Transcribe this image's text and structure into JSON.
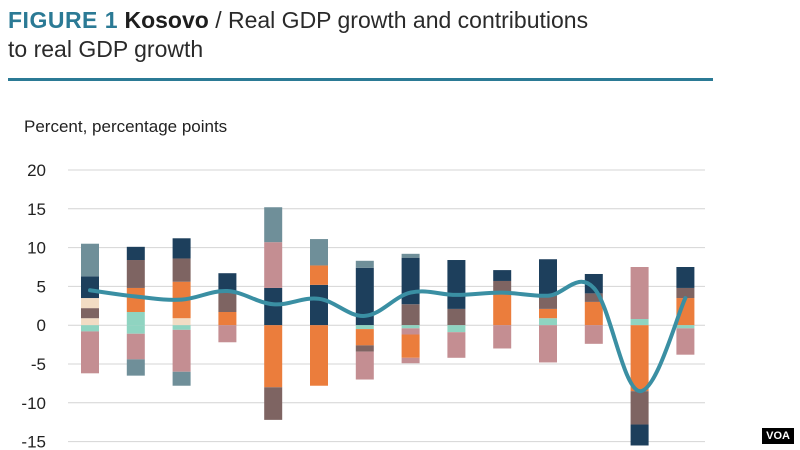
{
  "header": {
    "figure_label": "FIGURE 1",
    "country": "Kosovo",
    "title_rest": " / Real GDP growth and contributions",
    "title_line2": "to real GDP growth"
  },
  "units_label": "Percent, percentage points",
  "watermark": "VOA",
  "colors": {
    "accent": "#2b7a95",
    "line": "#3a8fa3",
    "grid": "#d4d4d4",
    "series": [
      "#1d3f5c",
      "#6f8f99",
      "#eb7d3c",
      "#c48e92",
      "#7e6462",
      "#f2dcc4",
      "#8fd4c1"
    ]
  },
  "chart_data": {
    "type": "bar",
    "stacked": true,
    "title": "Kosovo / Real GDP growth and contributions to real GDP growth",
    "ylabel": "Percent, percentage points",
    "ylim": [
      -15,
      20
    ],
    "yticks": [
      20,
      15,
      10,
      5,
      0,
      -5,
      -10,
      -15
    ],
    "yticks_labels": [
      "20",
      "15",
      "10",
      "5",
      "0",
      "-5",
      "-10",
      "-15"
    ],
    "grid": true,
    "bars": [
      [
        [
          0,
          0.9,
          5
        ],
        [
          0.9,
          2.2,
          4
        ],
        [
          2.2,
          3.5,
          5
        ],
        [
          3.5,
          6.3,
          0
        ],
        [
          6.3,
          10.5,
          1
        ],
        [
          0,
          -0.8,
          6
        ],
        [
          -0.8,
          -6.2,
          3
        ]
      ],
      [
        [
          0,
          1.7,
          6
        ],
        [
          1.7,
          4.8,
          2
        ],
        [
          4.8,
          8.4,
          4
        ],
        [
          8.4,
          10.1,
          0
        ],
        [
          0,
          -1.1,
          6
        ],
        [
          -1.1,
          -4.4,
          3
        ],
        [
          -4.4,
          -6.5,
          1
        ]
      ],
      [
        [
          0,
          0.9,
          5
        ],
        [
          0.9,
          5.6,
          2
        ],
        [
          5.6,
          8.6,
          4
        ],
        [
          8.6,
          11.2,
          0
        ],
        [
          0,
          -0.6,
          6
        ],
        [
          -0.6,
          -6.0,
          3
        ],
        [
          -6.0,
          -7.8,
          1
        ]
      ],
      [
        [
          0,
          1.7,
          2
        ],
        [
          1.7,
          4.2,
          4
        ],
        [
          4.2,
          6.7,
          0
        ],
        [
          0,
          -2.2,
          3
        ]
      ],
      [
        [
          0,
          4.8,
          0
        ],
        [
          4.8,
          10.7,
          3
        ],
        [
          10.7,
          15.2,
          1
        ],
        [
          0,
          -8.0,
          2
        ],
        [
          -8.0,
          -12.2,
          4
        ]
      ],
      [
        [
          0,
          5.2,
          0
        ],
        [
          5.2,
          7.7,
          2
        ],
        [
          7.7,
          11.1,
          1
        ],
        [
          0,
          -7.8,
          2
        ]
      ],
      [
        [
          0,
          7.4,
          0
        ],
        [
          7.4,
          8.3,
          1
        ],
        [
          0,
          -0.5,
          6
        ],
        [
          -0.5,
          -2.6,
          2
        ],
        [
          -2.6,
          -3.4,
          4
        ],
        [
          -3.4,
          -7.0,
          3
        ]
      ],
      [
        [
          0,
          2.7,
          4
        ],
        [
          2.7,
          8.7,
          0
        ],
        [
          8.7,
          9.2,
          1
        ],
        [
          0,
          -0.4,
          6
        ],
        [
          -0.4,
          -1.2,
          3
        ],
        [
          -1.2,
          -4.2,
          2
        ],
        [
          -4.2,
          -4.9,
          3
        ]
      ],
      [
        [
          0,
          2.1,
          4
        ],
        [
          2.1,
          8.4,
          0
        ],
        [
          0,
          -0.9,
          6
        ],
        [
          -0.9,
          -4.2,
          3
        ]
      ],
      [
        [
          0,
          4.2,
          2
        ],
        [
          4.2,
          5.7,
          4
        ],
        [
          5.7,
          7.1,
          0
        ],
        [
          0,
          -3.0,
          3
        ]
      ],
      [
        [
          0,
          0.9,
          6
        ],
        [
          0.9,
          2.1,
          2
        ],
        [
          2.1,
          4.0,
          4
        ],
        [
          4.0,
          8.5,
          0
        ],
        [
          0,
          -4.8,
          3
        ]
      ],
      [
        [
          0,
          3.0,
          2
        ],
        [
          3.0,
          4.1,
          4
        ],
        [
          4.1,
          6.6,
          0
        ],
        [
          0,
          -2.4,
          3
        ]
      ],
      [
        [
          0,
          0.8,
          6
        ],
        [
          0.8,
          7.5,
          3
        ],
        [
          0,
          -8.5,
          2
        ],
        [
          -8.5,
          -12.8,
          4
        ],
        [
          -12.8,
          -15.5,
          0
        ]
      ],
      [
        [
          0,
          3.5,
          2
        ],
        [
          3.5,
          4.8,
          4
        ],
        [
          4.8,
          7.5,
          0
        ],
        [
          0,
          -0.4,
          6
        ],
        [
          -0.4,
          -3.8,
          3
        ]
      ]
    ],
    "series": [
      {
        "name": "",
        "values": [
          4.5,
          3.7,
          3.3,
          4.4,
          2.7,
          3.4,
          1.2,
          4.2,
          3.9,
          4.2,
          3.8,
          4.8,
          -8.5,
          3.5
        ]
      }
    ]
  }
}
